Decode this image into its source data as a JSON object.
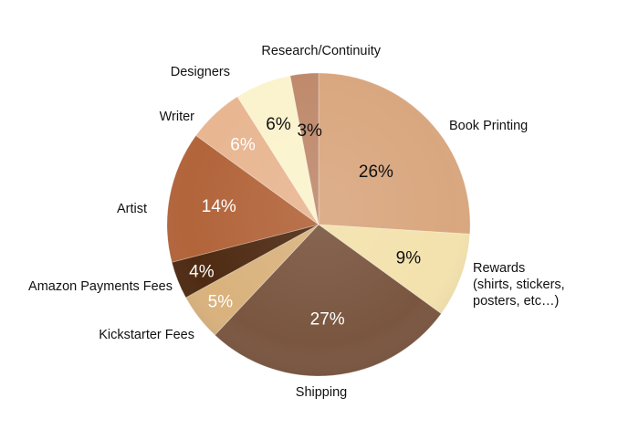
{
  "chart_data": {
    "type": "pie",
    "title": "",
    "start": "top",
    "direction": "clockwise",
    "slices": [
      {
        "label": [
          "Book Printing"
        ],
        "value": 26,
        "value_label": "26%",
        "color": "#d9a77f",
        "text_color": "#111111"
      },
      {
        "label": [
          "Rewards",
          "(shirts, stickers,",
          "posters, etc…)"
        ],
        "value": 9,
        "value_label": "9%",
        "color": "#f3e2ad",
        "text_color": "#111111"
      },
      {
        "label": [
          "Shipping"
        ],
        "value": 27,
        "value_label": "27%",
        "color": "#7a5640",
        "text_color": "#ffffff"
      },
      {
        "label": [
          "Kickstarter Fees"
        ],
        "value": 5,
        "value_label": "5%",
        "color": "#d9b27d",
        "text_color": "#ffffff"
      },
      {
        "label": [
          "Amazon Payments Fees"
        ],
        "value": 4,
        "value_label": "4%",
        "color": "#4e2a12",
        "text_color": "#ffffff"
      },
      {
        "label": [
          "Artist"
        ],
        "value": 14,
        "value_label": "14%",
        "color": "#b2643a",
        "text_color": "#ffffff"
      },
      {
        "label": [
          "Writer"
        ],
        "value": 6,
        "value_label": "6%",
        "color": "#e8b691",
        "text_color": "#ffffff"
      },
      {
        "label": [
          "Designers"
        ],
        "value": 6,
        "value_label": "6%",
        "color": "#fbf3cd",
        "text_color": "#111111"
      },
      {
        "label": [
          "Research/Continuity"
        ],
        "value": 3,
        "value_label": "3%",
        "color": "#bf8a6c",
        "text_color": "#111111"
      }
    ]
  }
}
